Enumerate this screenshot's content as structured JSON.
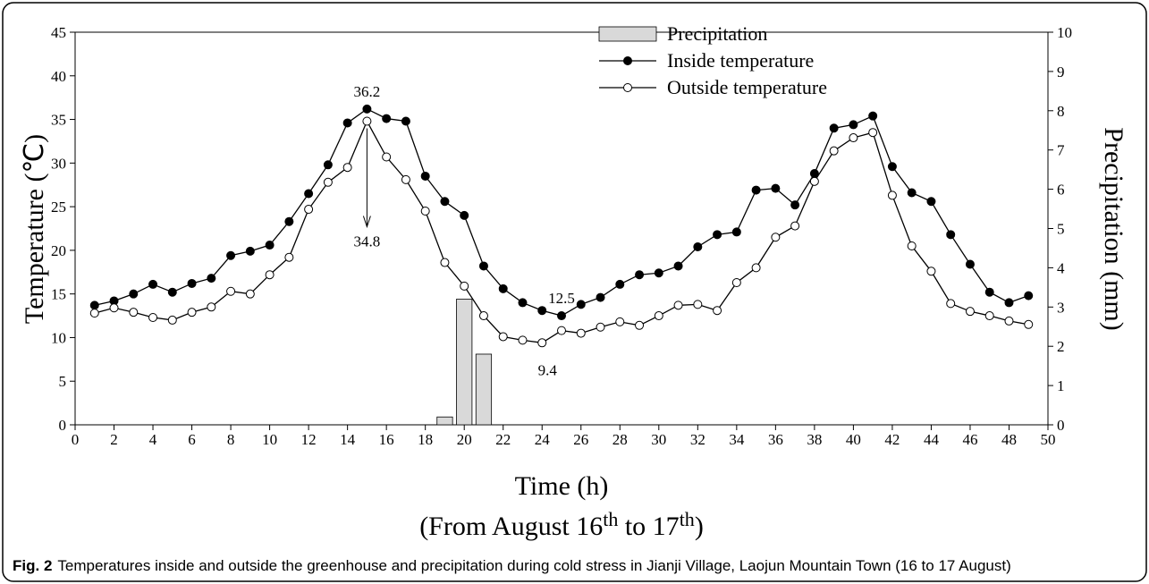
{
  "chart_data": {
    "type": "line",
    "xlabel": "Time (h)",
    "xlabel_sub": [
      "(From August 16",
      "th",
      " to 17",
      "th",
      ")"
    ],
    "ylabel": "Temperature (℃)",
    "y2label": "Precipitation (mm)",
    "caption_label": "Fig. 2",
    "caption": "Temperatures inside and outside the greenhouse and precipitation during cold stress in Jianji Village, Laojun Mountain Town (16 to 17 August)",
    "xlim": [
      0,
      50
    ],
    "xticks": [
      0,
      2,
      4,
      6,
      8,
      10,
      12,
      14,
      16,
      18,
      20,
      22,
      24,
      26,
      28,
      30,
      32,
      34,
      36,
      38,
      40,
      42,
      44,
      46,
      48,
      50
    ],
    "ylim": [
      0,
      45
    ],
    "yticks": [
      0,
      5,
      10,
      15,
      20,
      25,
      30,
      35,
      40,
      45
    ],
    "y2lim": [
      0,
      10
    ],
    "y2ticks": [
      0,
      1,
      2,
      3,
      4,
      5,
      6,
      7,
      8,
      9,
      10
    ],
    "legend": "top",
    "series": [
      {
        "name": "Precipitation",
        "type": "bar",
        "axis": "y2",
        "color": "#d9d9d9",
        "x": [
          19,
          20,
          21
        ],
        "values": [
          0.2,
          3.2,
          1.8
        ]
      },
      {
        "name": "Inside temperature",
        "type": "line",
        "color": "#000000",
        "marker": "filled",
        "x": [
          1,
          2,
          3,
          4,
          5,
          6,
          7,
          8,
          9,
          10,
          11,
          12,
          13,
          14,
          15,
          16,
          17,
          18,
          19,
          20,
          21,
          22,
          23,
          24,
          25,
          26,
          27,
          28,
          29,
          30,
          31,
          32,
          33,
          34,
          35,
          36,
          37,
          38,
          39,
          40,
          41,
          42,
          43,
          44,
          45,
          46,
          47,
          48,
          49
        ],
        "values": [
          13.7,
          14.2,
          15.0,
          16.1,
          15.2,
          16.2,
          16.8,
          19.4,
          19.9,
          20.6,
          23.3,
          26.5,
          29.8,
          34.6,
          36.2,
          35.1,
          34.8,
          28.5,
          25.6,
          24.0,
          18.2,
          15.6,
          14.0,
          13.1,
          12.5,
          13.8,
          14.6,
          16.1,
          17.2,
          17.4,
          18.2,
          20.4,
          21.8,
          22.1,
          26.9,
          27.1,
          25.2,
          28.8,
          34.0,
          34.4,
          35.4,
          29.6,
          26.6,
          25.6,
          21.8,
          18.4,
          15.2,
          14.0,
          14.8
        ]
      },
      {
        "name": "Outside temperature",
        "type": "line",
        "color": "#000000",
        "marker": "open",
        "x": [
          1,
          2,
          3,
          4,
          5,
          6,
          7,
          8,
          9,
          10,
          11,
          12,
          13,
          14,
          15,
          16,
          17,
          18,
          19,
          20,
          21,
          22,
          23,
          24,
          25,
          26,
          27,
          28,
          29,
          30,
          31,
          32,
          33,
          34,
          35,
          36,
          37,
          38,
          39,
          40,
          41,
          42,
          43,
          44,
          45,
          46,
          47,
          48,
          49
        ],
        "values": [
          12.8,
          13.4,
          12.9,
          12.3,
          12.0,
          12.9,
          13.5,
          15.3,
          15.0,
          17.2,
          19.2,
          24.7,
          27.8,
          29.5,
          34.8,
          30.7,
          28.1,
          24.5,
          18.6,
          15.9,
          12.5,
          10.1,
          9.7,
          9.4,
          10.8,
          10.5,
          11.2,
          11.8,
          11.4,
          12.5,
          13.7,
          13.8,
          13.1,
          16.3,
          18.0,
          21.5,
          22.8,
          27.9,
          31.4,
          32.9,
          33.5,
          26.3,
          20.5,
          17.6,
          13.9,
          13.0,
          12.5,
          11.9,
          11.5
        ]
      }
    ],
    "annotations": [
      "36.2",
      "34.8",
      "12.5",
      "9.4"
    ]
  }
}
